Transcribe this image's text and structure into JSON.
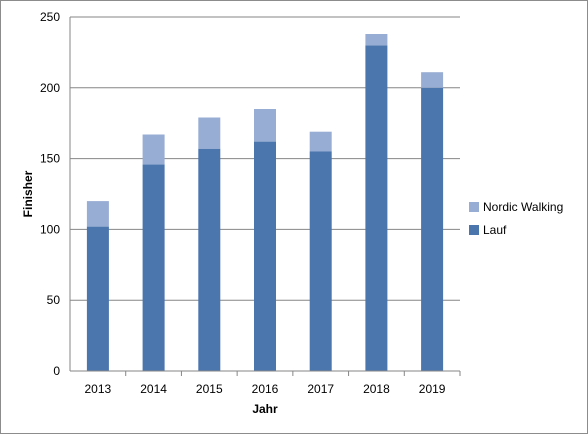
{
  "chart_data": {
    "type": "bar",
    "stacked": true,
    "categories": [
      "2013",
      "2014",
      "2015",
      "2016",
      "2017",
      "2018",
      "2019"
    ],
    "series": [
      {
        "name": "Lauf",
        "values": [
          102,
          146,
          157,
          162,
          155,
          230,
          200
        ],
        "color": "#4a75ad"
      },
      {
        "name": "Nordic Walking",
        "values": [
          18,
          21,
          22,
          23,
          14,
          8,
          11
        ],
        "color": "#98add4"
      }
    ],
    "xlabel": "Jahr",
    "ylabel": "Finisher",
    "ylim": [
      0,
      250
    ],
    "yticks": [
      "0",
      "50",
      "100",
      "150",
      "200",
      "250"
    ],
    "grid": true,
    "legend": "right"
  }
}
